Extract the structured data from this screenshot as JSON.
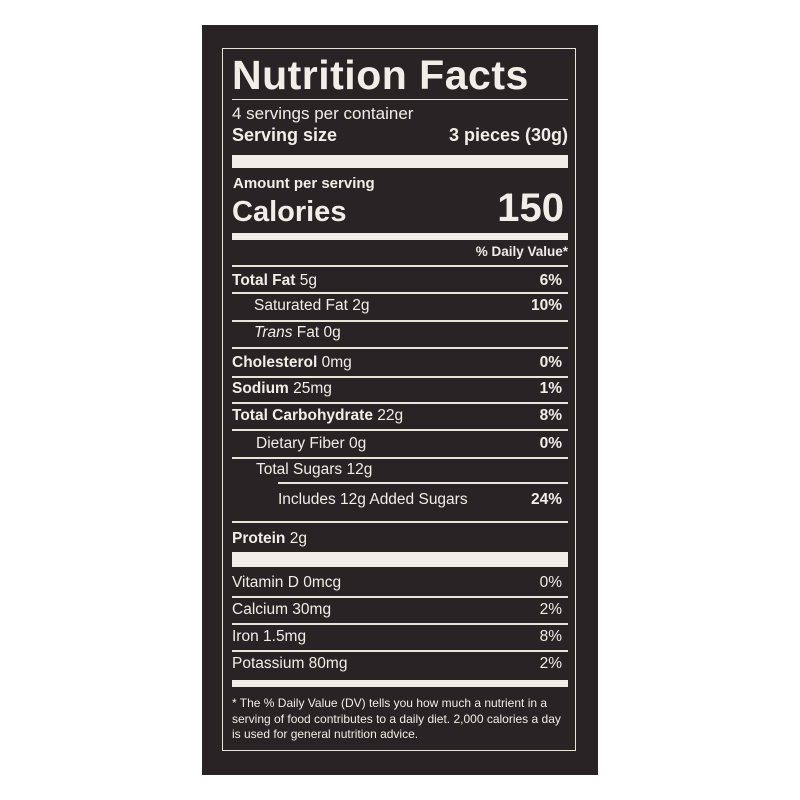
{
  "label": {
    "title": "Nutrition Facts",
    "servings_per_container": "4 servings per container",
    "serving_size_label": "Serving size",
    "serving_size_value": "3 pieces (30g)",
    "amount_per_serving": "Amount per serving",
    "calories_label": "Calories",
    "calories_value": "150",
    "daily_value_header": "% Daily Value*",
    "nutrients": [
      {
        "name": "Total Fat",
        "amount": "5g",
        "dv": "6%"
      },
      {
        "name": "Saturated Fat",
        "amount": "2g",
        "dv": "10%"
      },
      {
        "name": "Trans",
        "name_suffix": "Fat",
        "amount": "0g",
        "dv": ""
      },
      {
        "name": "Cholesterol",
        "amount": "0mg",
        "dv": "0%"
      },
      {
        "name": "Sodium",
        "amount": "25mg",
        "dv": "1%"
      },
      {
        "name": "Total Carbohydrate",
        "amount": "22g",
        "dv": "8%"
      },
      {
        "name": "Dietary Fiber",
        "amount": "0g",
        "dv": "0%"
      },
      {
        "name": "Total Sugars",
        "amount": "12g",
        "dv": ""
      },
      {
        "name": "Includes 12g Added Sugars",
        "amount": "",
        "dv": "24%"
      },
      {
        "name": "Protein",
        "amount": "2g",
        "dv": ""
      }
    ],
    "vitamins": [
      {
        "text": "Vitamin D 0mcg",
        "dv": "0%"
      },
      {
        "text": "Calcium 30mg",
        "dv": "2%"
      },
      {
        "text": "Iron 1.5mg",
        "dv": "8%"
      },
      {
        "text": "Potassium 80mg",
        "dv": "2%"
      }
    ],
    "footnote": "* The % Daily Value (DV) tells you how much a nutrient in a serving of food contributes to a daily diet. 2,000 calories a day is used for general nutrition advice."
  },
  "colors": {
    "background": "#2a2325",
    "text": "#f2ede6"
  }
}
